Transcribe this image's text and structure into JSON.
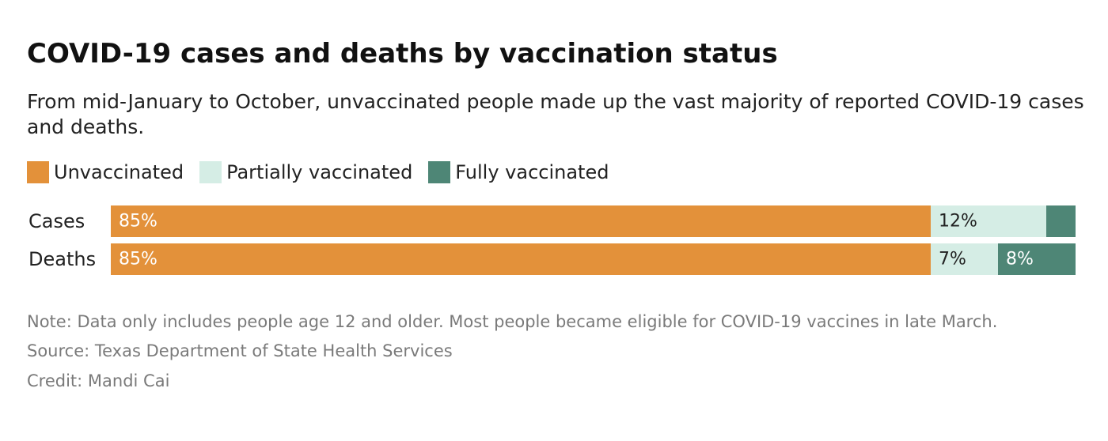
{
  "title": "COVID-19 cases and deaths by vaccination status",
  "subtitle": "From mid-January to October, unvaccinated people made up the vast majority of reported COVID-19 cases and deaths.",
  "legend": [
    {
      "label": "Unvaccinated",
      "color": "#E3913A"
    },
    {
      "label": "Partially vaccinated",
      "color": "#D5EDE5"
    },
    {
      "label": "Fully vaccinated",
      "color": "#4E8676"
    }
  ],
  "chart_data": {
    "type": "bar",
    "orientation": "horizontal",
    "stacked": "100%",
    "categories": [
      "Cases",
      "Deaths"
    ],
    "series": [
      {
        "name": "Unvaccinated",
        "values": [
          85,
          85
        ],
        "labels": [
          "85%",
          "85%"
        ],
        "color": "#E3913A",
        "label_color": "#ffffff"
      },
      {
        "name": "Partially vaccinated",
        "values": [
          12,
          7
        ],
        "labels": [
          "12%",
          "7%"
        ],
        "color": "#D5EDE5",
        "label_color": "#222222"
      },
      {
        "name": "Fully vaccinated",
        "values": [
          3,
          8
        ],
        "labels": [
          "",
          "8%"
        ],
        "color": "#4E8676",
        "label_color": "#ffffff"
      }
    ],
    "xlim": [
      0,
      100
    ],
    "grid": false,
    "legend_position": "top-left"
  },
  "footer": {
    "note": "Note: Data only includes people age 12 and older. Most people became eligible for COVID-19 vaccines in late March.",
    "source": "Source: Texas Department of State Health Services",
    "credit": "Credit: Mandi Cai"
  }
}
